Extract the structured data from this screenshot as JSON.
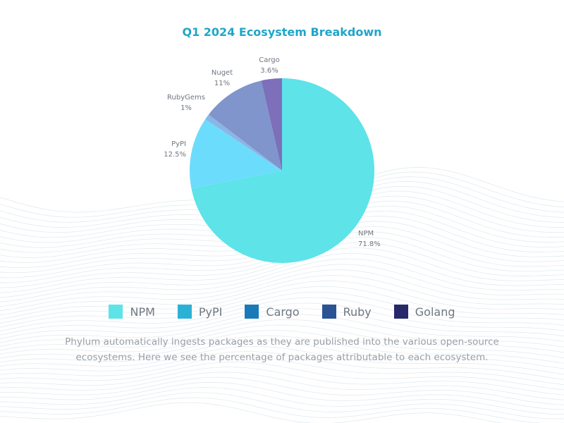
{
  "chart_data": {
    "type": "pie",
    "title": "Q1 2024 Ecosystem Breakdown",
    "slices": [
      {
        "label": "NPM",
        "value": 71.8,
        "display": "71.8%",
        "color": "#5de3e8"
      },
      {
        "label": "PyPI",
        "value": 12.5,
        "display": "12.5%",
        "color": "#6cdcfc"
      },
      {
        "label": "RubyGems",
        "value": 1,
        "display": "1%",
        "color": "#8ab6e6"
      },
      {
        "label": "Nuget",
        "value": 11,
        "display": "11%",
        "color": "#7f95cc"
      },
      {
        "label": "Cargo",
        "value": 3.6,
        "display": "3.6%",
        "color": "#7d6fba"
      }
    ],
    "legend": [
      {
        "label": "NPM",
        "color": "#5de3e8"
      },
      {
        "label": "PyPI",
        "color": "#2cb1d6"
      },
      {
        "label": "Cargo",
        "color": "#1a7ab8"
      },
      {
        "label": "Ruby",
        "color": "#2a5294"
      },
      {
        "label": "Golang",
        "color": "#27286a"
      }
    ],
    "legend_placement": "bottom"
  },
  "caption": "Phylum automatically ingests packages as they are published into the various open-source ecosystems. Here we see the percentage of packages attributable to each ecosystem."
}
